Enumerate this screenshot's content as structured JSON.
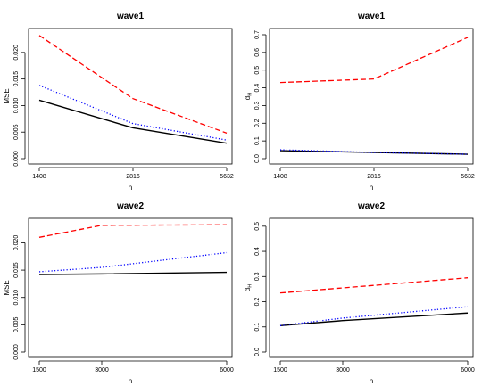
{
  "chart_data": [
    {
      "type": "line",
      "title": "wave1",
      "xlabel": "n",
      "ylabel": "MSE",
      "x": [
        1408,
        2816,
        5632
      ],
      "xticks": [
        "1408",
        "2816",
        "5632"
      ],
      "ylim": [
        0,
        0.0235
      ],
      "yticks": [
        "0.000",
        "0.005",
        "0.010",
        "0.015",
        "0.020"
      ],
      "series": [
        {
          "values": [
            0.011,
            0.0058,
            0.0029
          ],
          "color": "#000000",
          "style": "solid"
        },
        {
          "values": [
            0.0138,
            0.0066,
            0.0035
          ],
          "color": "#0000ff",
          "style": "dotted"
        },
        {
          "values": [
            0.0232,
            0.0113,
            0.0048
          ],
          "color": "#ff0000",
          "style": "dashed"
        }
      ]
    },
    {
      "type": "line",
      "title": "wave1",
      "xlabel": "n",
      "ylabel": "dH",
      "x": [
        1408,
        2816,
        5632
      ],
      "xticks": [
        "1408",
        "2816",
        "5632"
      ],
      "ylim": [
        0,
        0.705
      ],
      "yticks": [
        "0.0",
        "0.1",
        "0.2",
        "0.3",
        "0.4",
        "0.5",
        "0.6",
        "0.7"
      ],
      "series": [
        {
          "values": [
            0.045,
            0.035,
            0.025
          ],
          "color": "#000000",
          "style": "solid"
        },
        {
          "values": [
            0.05,
            0.035,
            0.025
          ],
          "color": "#0000ff",
          "style": "dotted"
        },
        {
          "values": [
            0.43,
            0.45,
            0.685
          ],
          "color": "#ff0000",
          "style": "dashed"
        }
      ]
    },
    {
      "type": "line",
      "title": "wave2",
      "xlabel": "n",
      "ylabel": "MSE",
      "x": [
        1500,
        3000,
        6000
      ],
      "xticks": [
        "1500",
        "3000",
        "6000"
      ],
      "ylim": [
        0,
        0.0235
      ],
      "yticks": [
        "0.000",
        "0.005",
        "0.010",
        "0.015",
        "0.020"
      ],
      "series": [
        {
          "values": [
            0.0142,
            0.0143,
            0.0146
          ],
          "color": "#000000",
          "style": "solid"
        },
        {
          "values": [
            0.0147,
            0.0155,
            0.0182
          ],
          "color": "#0000ff",
          "style": "dotted"
        },
        {
          "values": [
            0.021,
            0.0232,
            0.0233
          ],
          "color": "#ff0000",
          "style": "dashed"
        }
      ]
    },
    {
      "type": "line",
      "title": "wave2",
      "xlabel": "n",
      "ylabel": "dH",
      "x": [
        1500,
        3000,
        6000
      ],
      "xticks": [
        "1500",
        "3000",
        "6000"
      ],
      "ylim": [
        0,
        0.51
      ],
      "yticks": [
        "0.0",
        "0.1",
        "0.2",
        "0.3",
        "0.4",
        "0.5"
      ],
      "series": [
        {
          "values": [
            0.105,
            0.125,
            0.155
          ],
          "color": "#000000",
          "style": "solid"
        },
        {
          "values": [
            0.105,
            0.135,
            0.18
          ],
          "color": "#0000ff",
          "style": "dotted"
        },
        {
          "values": [
            0.235,
            0.255,
            0.295
          ],
          "color": "#ff0000",
          "style": "dashed"
        }
      ]
    }
  ]
}
